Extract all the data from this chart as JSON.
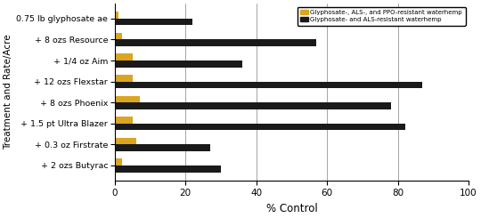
{
  "categories": [
    "0.75 lb glyphosate ae",
    "+ 8 ozs Resource",
    "+ 1/4 oz Aim",
    "+ 12 ozs Flexstar",
    "+ 8 ozs Phoenix",
    "+ 1.5 pt Ultra Blazer",
    "+ 0.3 oz Firstrate",
    "+ 2 ozs Butyrac"
  ],
  "ppo_resistant": [
    1,
    2,
    5,
    5,
    7,
    5,
    6,
    2
  ],
  "als_resistant": [
    22,
    57,
    36,
    87,
    78,
    82,
    27,
    30
  ],
  "color_ppo": "#DAA520",
  "color_als": "#1a1a1a",
  "legend_ppo": "Glyphosate-, ALS-, and PPO-resistant waterhemp",
  "legend_als": "Glyphosate- and ALS-resistant waterhemp",
  "xlabel": "% Control",
  "ylabel": "Treatment and Rate/Acre",
  "xlim": [
    0,
    100
  ],
  "xticks": [
    0,
    20,
    40,
    60,
    80,
    100
  ],
  "bar_height": 0.32,
  "figsize": [
    5.4,
    2.45
  ],
  "dpi": 100
}
